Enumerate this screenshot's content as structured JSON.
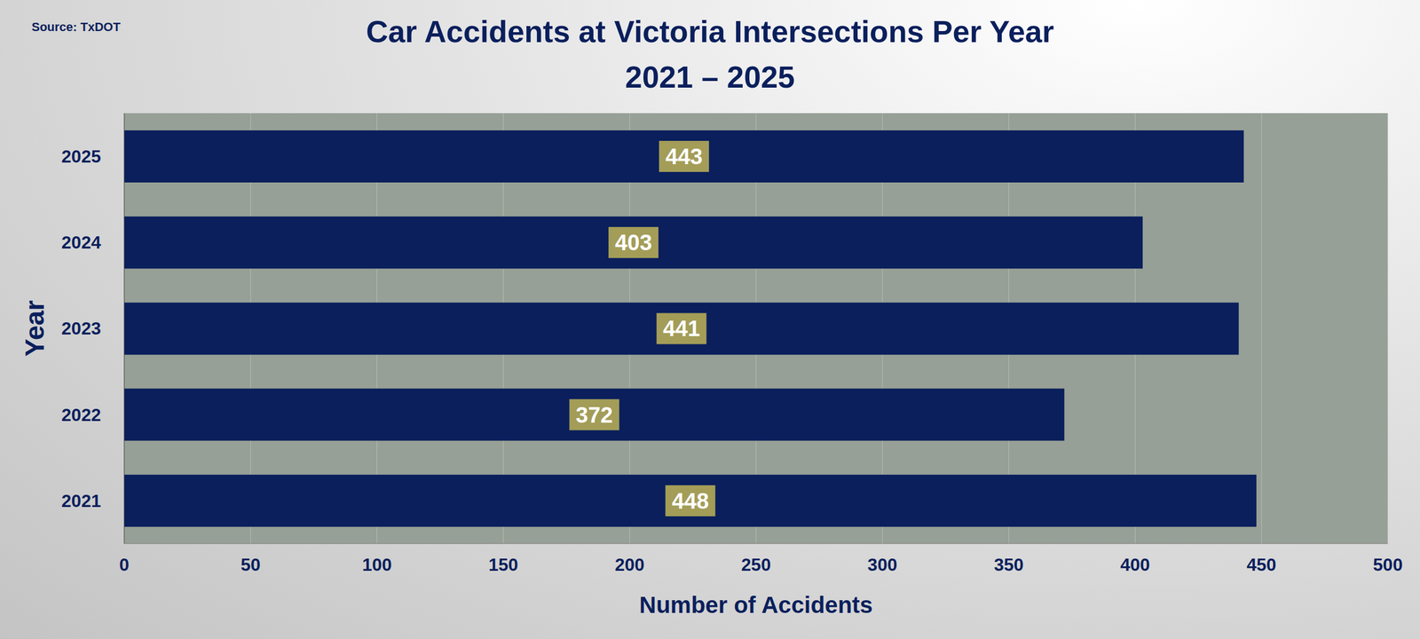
{
  "chart_data": {
    "type": "bar",
    "orientation": "horizontal",
    "title": "Car Accidents at Victoria Intersections Per Year",
    "subtitle": "2021 – 2025",
    "source": "Source: TxDOT",
    "x_label": "Number of Accidents",
    "y_label": "Year",
    "categories": [
      "2021",
      "2022",
      "2023",
      "2024",
      "2025"
    ],
    "values": [
      448,
      372,
      441,
      403,
      443
    ],
    "color": "#0a1f5c",
    "xlim": [
      0,
      500
    ],
    "xticks": [
      0,
      50,
      100,
      150,
      200,
      250,
      300,
      350,
      400,
      450,
      500
    ],
    "grid": true,
    "data_labels": true
  }
}
